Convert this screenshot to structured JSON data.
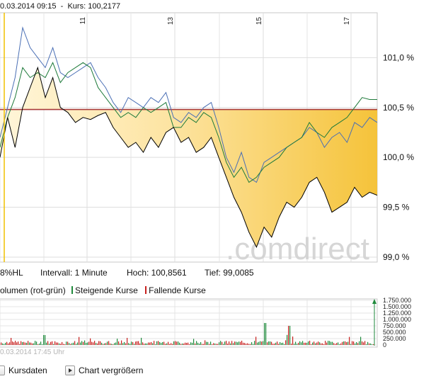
{
  "header": {
    "date_time": "0.03.2014 09:15",
    "separator": "-",
    "kurs_label": "Kurs:",
    "kurs_value": "100,2177"
  },
  "watermark": ".comdirect",
  "info_bar": {
    "hl_label": "8%HL",
    "intervall": "Intervall: 1 Minute",
    "hoch": "Hoch: 100,8561",
    "tief": "Tief: 99,0085"
  },
  "volume_legend": {
    "volumen": "olumen (rot-grün)",
    "steigende": "Steigende Kurse",
    "fallende": "Fallende Kurse"
  },
  "volume_timestamp": "0.03.2014 17:45 Uhr",
  "footer": {
    "kursdaten": "Kursdaten",
    "chart_vergroessern": "Chart vergrößern"
  },
  "colors": {
    "price_line": "#000000",
    "blue_series": "#4a6fb5",
    "green_series": "#1e7a3a",
    "reference_line": "#a83a3a",
    "fill_light": "#fff3d2",
    "fill_dark": "#f6c338",
    "volume_up": "#1f8a3c",
    "volume_down": "#c8201e",
    "grid": "#d7d7d7"
  },
  "chart_data": {
    "type": "line",
    "x_ticks": [
      "11",
      "13",
      "15",
      "17"
    ],
    "y_ticks": [
      "101,0 %",
      "100,5 %",
      "100,0 %",
      "99,5 %",
      "99,0 %"
    ],
    "ylim": [
      98.95,
      101.45
    ],
    "reference_level": 100.48,
    "series": [
      {
        "x": [
          0,
          2,
          4,
          6,
          8,
          10,
          12,
          14,
          16,
          18,
          20,
          22,
          24,
          26,
          28,
          30,
          32,
          34,
          36,
          38,
          40,
          42,
          44,
          46,
          48,
          50,
          52,
          54,
          56,
          58,
          60,
          62,
          64,
          66,
          68,
          70,
          72,
          74,
          76,
          78,
          80,
          82,
          84,
          86,
          88,
          90,
          92,
          94,
          96,
          98,
          100
        ],
        "values": [
          100.0,
          100.4,
          100.1,
          100.5,
          100.7,
          100.9,
          100.6,
          100.8,
          100.5,
          100.45,
          100.35,
          100.4,
          100.38,
          100.42,
          100.45,
          100.3,
          100.2,
          100.1,
          100.15,
          100.05,
          100.2,
          100.1,
          100.25,
          100.3,
          100.15,
          100.2,
          100.05,
          100.1,
          100.2,
          100.0,
          99.8,
          99.6,
          99.45,
          99.25,
          99.1,
          99.3,
          99.2,
          99.4,
          99.55,
          99.5,
          99.6,
          99.75,
          99.8,
          99.65,
          99.45,
          99.5,
          99.55,
          99.7,
          99.6,
          99.65,
          99.62
        ]
      },
      {
        "x": [
          0,
          2,
          4,
          6,
          8,
          10,
          12,
          14,
          16,
          18,
          20,
          22,
          24,
          26,
          28,
          30,
          32,
          34,
          36,
          38,
          40,
          42,
          44,
          46,
          48,
          50,
          52,
          54,
          56,
          58,
          60,
          62,
          64,
          66,
          68,
          70,
          72,
          74,
          76,
          78,
          80,
          82,
          84,
          86,
          88,
          90,
          92,
          94,
          96,
          98,
          100
        ],
        "values": [
          100.2,
          100.5,
          100.8,
          101.3,
          101.1,
          101.0,
          100.9,
          101.1,
          100.85,
          100.8,
          100.85,
          100.9,
          100.95,
          100.8,
          100.7,
          100.55,
          100.45,
          100.6,
          100.55,
          100.5,
          100.6,
          100.55,
          100.65,
          100.4,
          100.35,
          100.45,
          100.4,
          100.5,
          100.55,
          100.3,
          100.0,
          99.85,
          100.05,
          99.8,
          99.75,
          99.95,
          100.0,
          100.05,
          100.1,
          100.15,
          100.2,
          100.3,
          100.25,
          100.1,
          100.2,
          100.25,
          100.15,
          100.35,
          100.3,
          100.4,
          100.35
        ]
      },
      {
        "x": [
          0,
          2,
          4,
          6,
          8,
          10,
          12,
          14,
          16,
          18,
          20,
          22,
          24,
          26,
          28,
          30,
          32,
          34,
          36,
          38,
          40,
          42,
          44,
          46,
          48,
          50,
          52,
          54,
          56,
          58,
          60,
          62,
          64,
          66,
          68,
          70,
          72,
          74,
          76,
          78,
          80,
          82,
          84,
          86,
          88,
          90,
          92,
          94,
          96,
          98,
          100
        ],
        "values": [
          100.1,
          100.4,
          100.6,
          100.9,
          100.8,
          100.85,
          100.8,
          100.95,
          100.75,
          100.85,
          100.9,
          100.95,
          100.9,
          100.7,
          100.6,
          100.5,
          100.4,
          100.45,
          100.4,
          100.5,
          100.45,
          100.5,
          100.55,
          100.3,
          100.3,
          100.4,
          100.35,
          100.45,
          100.4,
          100.2,
          99.95,
          99.8,
          99.9,
          99.75,
          99.8,
          99.9,
          99.95,
          100.0,
          100.1,
          100.15,
          100.2,
          100.35,
          100.25,
          100.2,
          100.3,
          100.35,
          100.4,
          100.5,
          100.6,
          100.58,
          100.58
        ]
      }
    ]
  }
}
